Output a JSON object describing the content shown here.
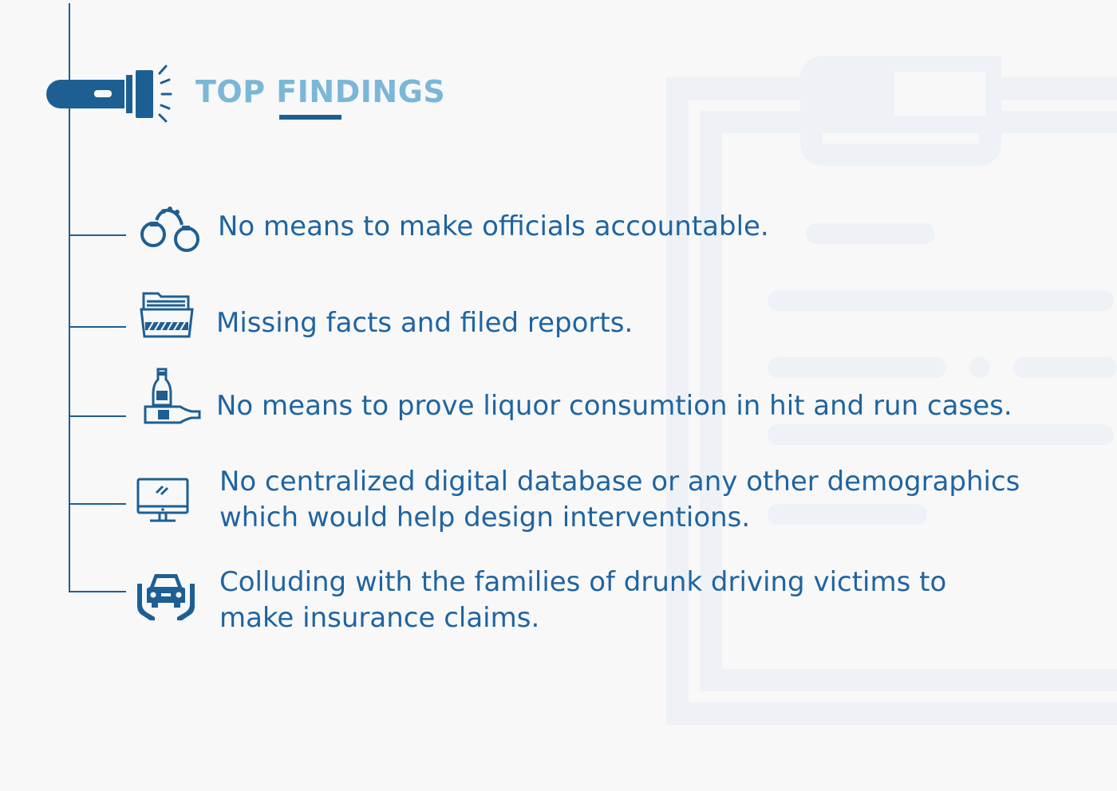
{
  "header": {
    "title": "TOP FINDINGS"
  },
  "icons": {
    "header": "flashlight-icon",
    "findings": [
      "handcuffs-icon",
      "folder-icon",
      "bottles-icon",
      "monitor-icon",
      "car-hands-icon"
    ]
  },
  "findings": [
    {
      "line1": "No means to make officials accountable.",
      "line2": ""
    },
    {
      "line1": "Missing facts and filed reports.",
      "line2": ""
    },
    {
      "line1": "No means to prove liquor consumtion in hit and run cases.",
      "line2": ""
    },
    {
      "line1": "No centralized digital database or any other demographics",
      "line2": "which would help design interventions."
    },
    {
      "line1": "Colluding with the families of drunk driving victims to",
      "line2": "make insurance claims."
    }
  ],
  "colors": {
    "primary": "#1d5f93",
    "text": "#1f64a0",
    "title": "#7bb7d6",
    "background": "#f8f8f9",
    "clipboard": "#eef1f6"
  }
}
